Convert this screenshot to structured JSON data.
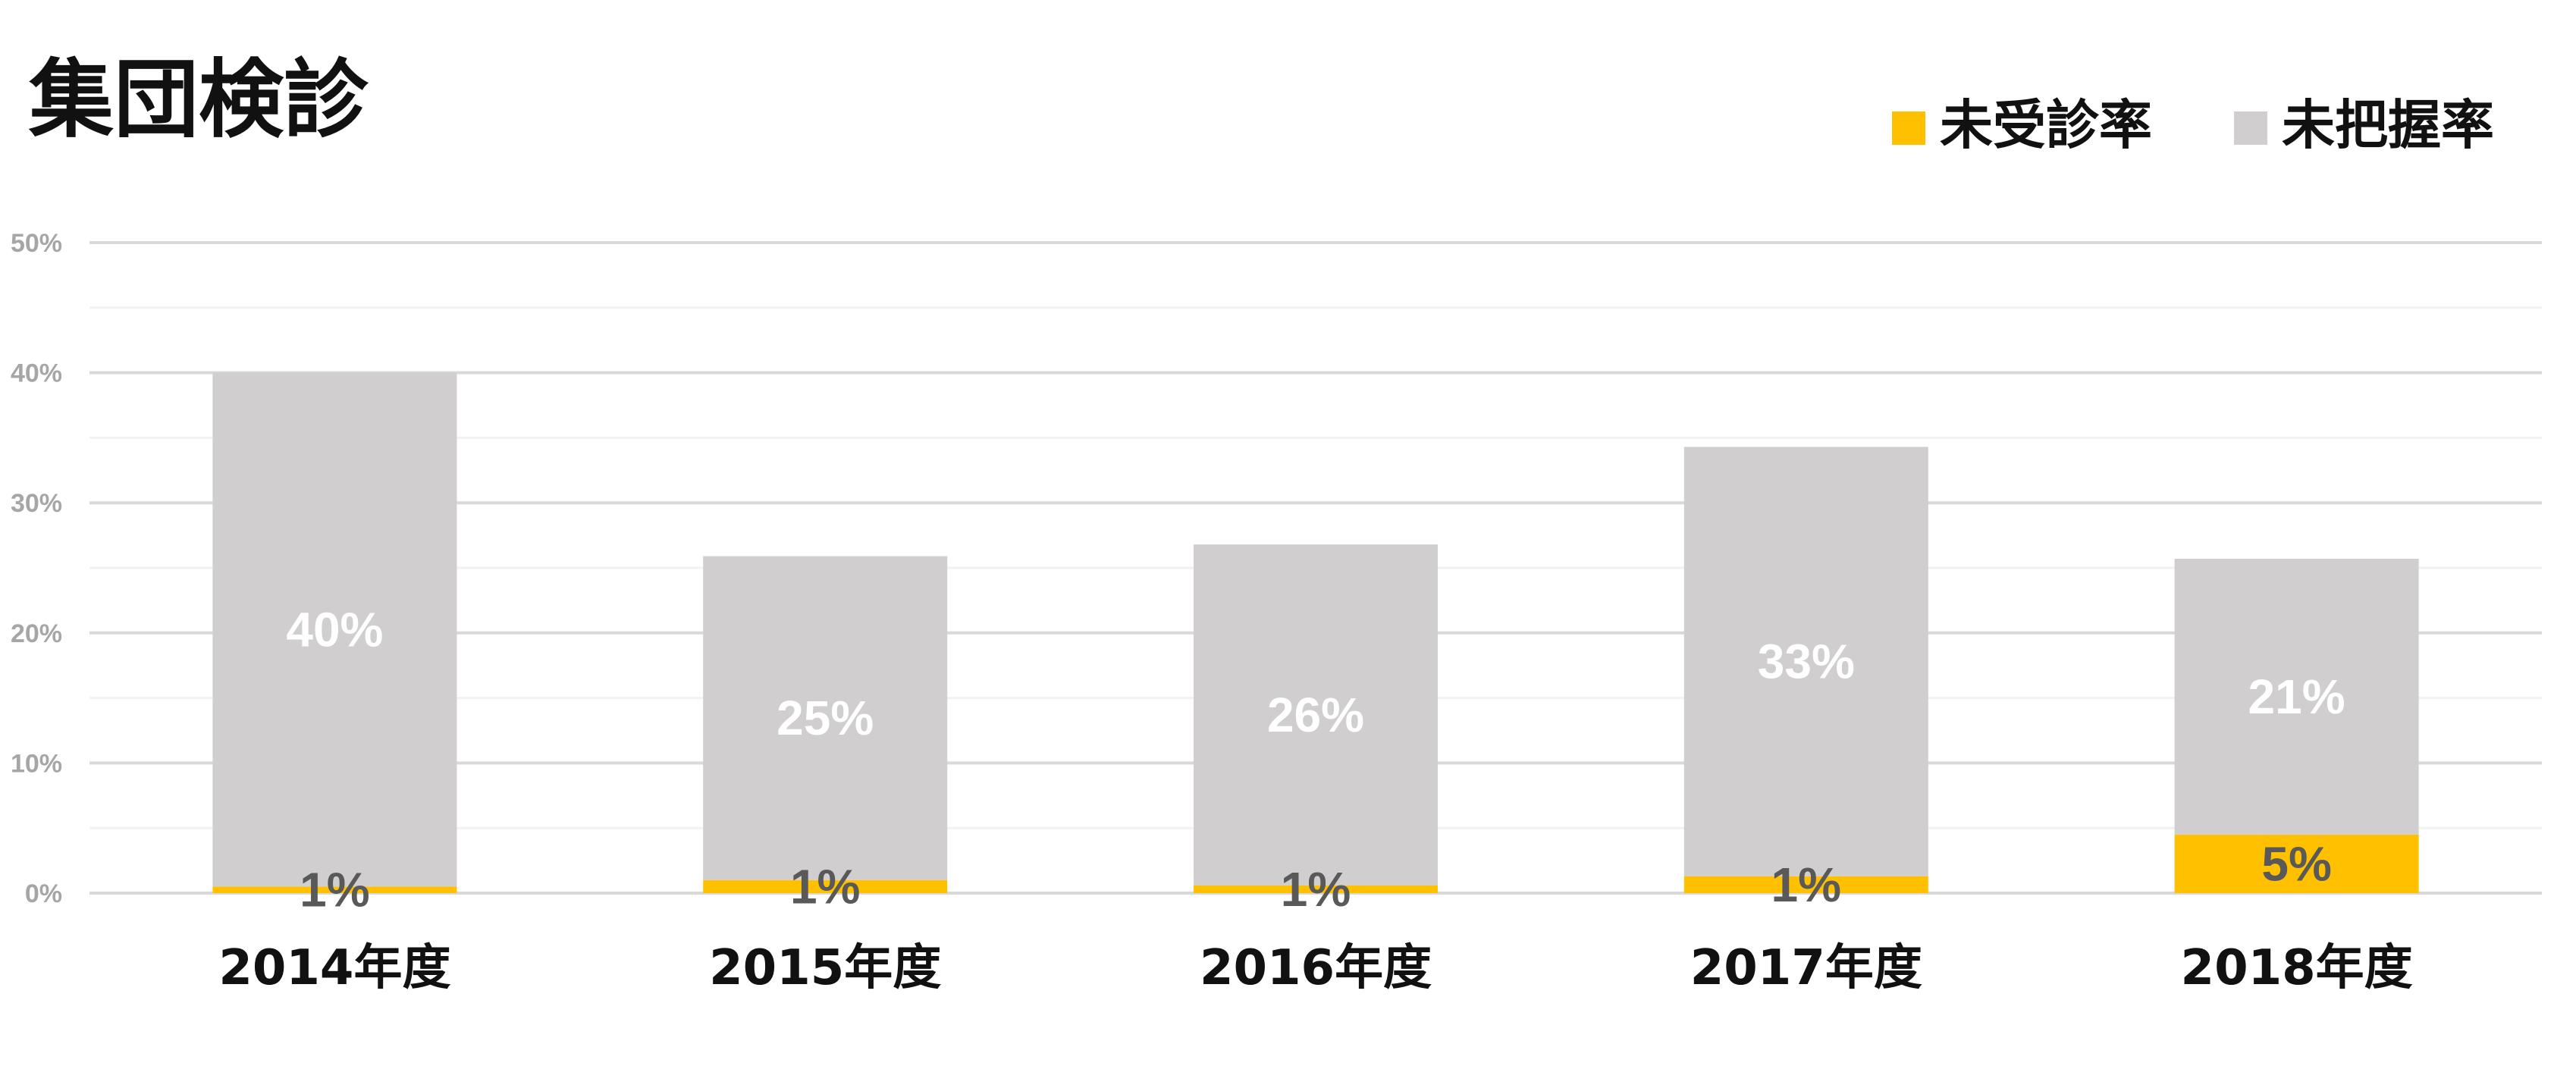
{
  "title": "集団検診",
  "colors": {
    "unexamined": "#FFC000",
    "ungrasped": "#D0CECE",
    "grid_major": "#d9d9d9",
    "grid_minor": "#f2f2f2"
  },
  "chart_data": {
    "type": "bar",
    "stacked": true,
    "title": "集団検診",
    "xlabel": "",
    "ylabel": "",
    "categories": [
      "2014年度",
      "2015年度",
      "2016年度",
      "2017年度",
      "2018年度"
    ],
    "ylim": [
      0,
      50
    ],
    "yticks": [
      "0%",
      "10%",
      "20%",
      "30%",
      "40%",
      "50%"
    ],
    "legend_position": "top-right",
    "grid": true,
    "series": [
      {
        "name": "未受診率",
        "color": "#FFC000",
        "values": [
          0.5,
          1.0,
          0.6,
          1.3,
          4.5
        ],
        "labels": [
          "1%",
          "1%",
          "1%",
          "1%",
          "5%"
        ]
      },
      {
        "name": "未把握率",
        "color": "#D0CECE",
        "values": [
          39.5,
          24.9,
          26.2,
          33.0,
          21.2
        ],
        "labels": [
          "40%",
          "25%",
          "26%",
          "33%",
          "21%"
        ]
      }
    ]
  }
}
